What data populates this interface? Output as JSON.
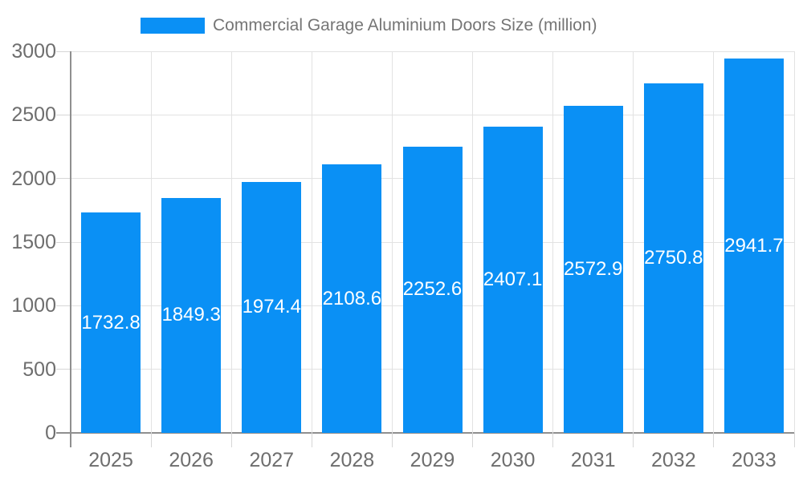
{
  "chart_data": {
    "type": "bar",
    "title": "Commercial Garage Aluminium Doors Size (million)",
    "legend_position": "top",
    "categories": [
      "2025",
      "2026",
      "2027",
      "2028",
      "2029",
      "2030",
      "2031",
      "2032",
      "2033"
    ],
    "values": [
      1732.8,
      1849.3,
      1974.4,
      2108.6,
      2252.6,
      2407.1,
      2572.9,
      2750.8,
      2941.7
    ],
    "value_labels": [
      "1732.8",
      "1849.3",
      "1974.4",
      "2108.6",
      "2252.6",
      "2407.1",
      "2572.9",
      "2750.8",
      "2941.7"
    ],
    "xlabel": "",
    "ylabel": "",
    "ylim": [
      0,
      3000
    ],
    "yticks": [
      0,
      500,
      1000,
      1500,
      2000,
      2500,
      3000
    ],
    "grid": true,
    "colors": {
      "bar": "#0a90f5",
      "value_label": "#ffffff",
      "axis_text": "#6e6e6e",
      "legend_text": "#757575",
      "grid": "#e2e2e2",
      "tick": "#d6d6d6",
      "axis_line": "#8f8f8f",
      "background": "#ffffff"
    }
  }
}
